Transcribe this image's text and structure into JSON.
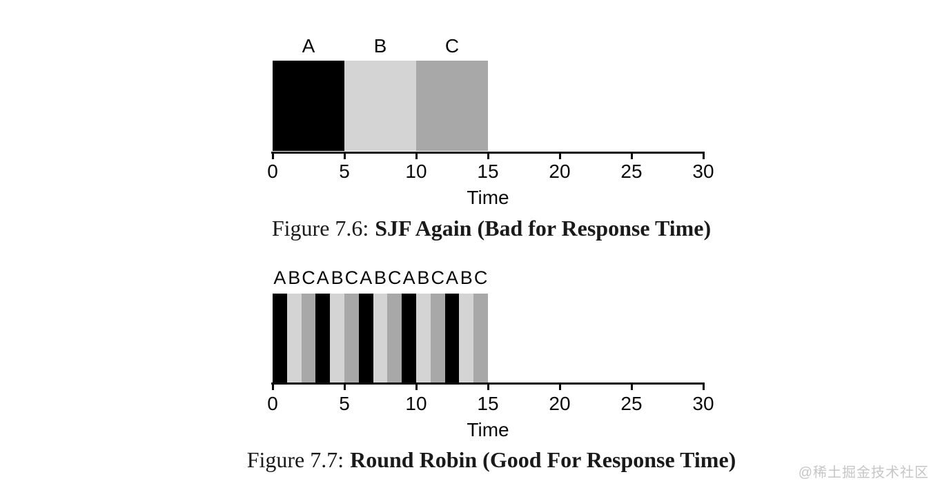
{
  "watermark": "@稀土掘金技术社区",
  "chart_data": [
    {
      "type": "bar",
      "variant": "scheduling-timeline",
      "xlabel": "Time",
      "xlim": [
        0,
        30
      ],
      "xticks": [
        0,
        5,
        10,
        15,
        20,
        25,
        30
      ],
      "grid": false,
      "segments": [
        {
          "label": "A",
          "start": 0,
          "end": 5,
          "color": "#000000"
        },
        {
          "label": "B",
          "start": 5,
          "end": 10,
          "color": "#d4d4d4"
        },
        {
          "label": "C",
          "start": 10,
          "end": 15,
          "color": "#a8a8a8"
        }
      ],
      "caption": {
        "prefix": "Figure 7.6:",
        "title": "SJF Again (Bad for Response Time)"
      }
    },
    {
      "type": "bar",
      "variant": "scheduling-timeline",
      "xlabel": "Time",
      "xlim": [
        0,
        30
      ],
      "xticks": [
        0,
        5,
        10,
        15,
        20,
        25,
        30
      ],
      "grid": false,
      "segments": [
        {
          "label": "A",
          "start": 0,
          "end": 1,
          "color": "#000000"
        },
        {
          "label": "B",
          "start": 1,
          "end": 2,
          "color": "#d4d4d4"
        },
        {
          "label": "C",
          "start": 2,
          "end": 3,
          "color": "#a8a8a8"
        },
        {
          "label": "A",
          "start": 3,
          "end": 4,
          "color": "#000000"
        },
        {
          "label": "B",
          "start": 4,
          "end": 5,
          "color": "#d4d4d4"
        },
        {
          "label": "C",
          "start": 5,
          "end": 6,
          "color": "#a8a8a8"
        },
        {
          "label": "A",
          "start": 6,
          "end": 7,
          "color": "#000000"
        },
        {
          "label": "B",
          "start": 7,
          "end": 8,
          "color": "#d4d4d4"
        },
        {
          "label": "C",
          "start": 8,
          "end": 9,
          "color": "#a8a8a8"
        },
        {
          "label": "A",
          "start": 9,
          "end": 10,
          "color": "#000000"
        },
        {
          "label": "B",
          "start": 10,
          "end": 11,
          "color": "#d4d4d4"
        },
        {
          "label": "C",
          "start": 11,
          "end": 12,
          "color": "#a8a8a8"
        },
        {
          "label": "A",
          "start": 12,
          "end": 13,
          "color": "#000000"
        },
        {
          "label": "B",
          "start": 13,
          "end": 14,
          "color": "#d4d4d4"
        },
        {
          "label": "C",
          "start": 14,
          "end": 15,
          "color": "#a8a8a8"
        }
      ],
      "caption": {
        "prefix": "Figure 7.7:",
        "title": "Round Robin (Good For Response Time)"
      }
    }
  ]
}
